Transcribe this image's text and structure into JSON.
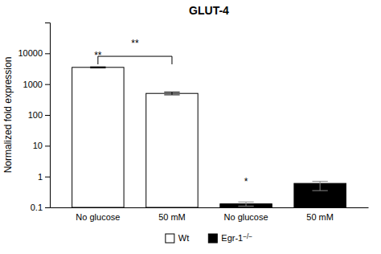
{
  "chart_data": {
    "type": "bar",
    "title": "GLUT-4",
    "ylabel": "Normalized fold expression",
    "categories": [
      "No glucose",
      "50 mM",
      "No glucose",
      "50 mM"
    ],
    "series": [
      {
        "name": "Wt",
        "color": "white",
        "values": [
          3500,
          500,
          null,
          null
        ],
        "errors_upper": [
          150,
          50,
          null,
          null
        ],
        "errors_lower": [
          150,
          50,
          null,
          null
        ]
      },
      {
        "name": "Egr-1−/−",
        "color": "black",
        "values": [
          null,
          null,
          0.13,
          0.6
        ],
        "errors_upper": [
          null,
          null,
          0.02,
          0.1
        ],
        "errors_lower": [
          null,
          null,
          0.02,
          0.25
        ]
      }
    ],
    "log": "y",
    "ylim": [
      0.1,
      100000
    ],
    "yticks": [
      0.1,
      1,
      10,
      100,
      1000,
      10000
    ],
    "grid": false,
    "legend": "bottom",
    "annotations": [
      {
        "text": "**",
        "category": 0,
        "y": 5500
      },
      {
        "text": "*",
        "category": 2,
        "y": 0.45
      }
    ],
    "brackets": [
      {
        "text": "**",
        "from": 0,
        "to": 1,
        "y": 8000
      }
    ]
  }
}
